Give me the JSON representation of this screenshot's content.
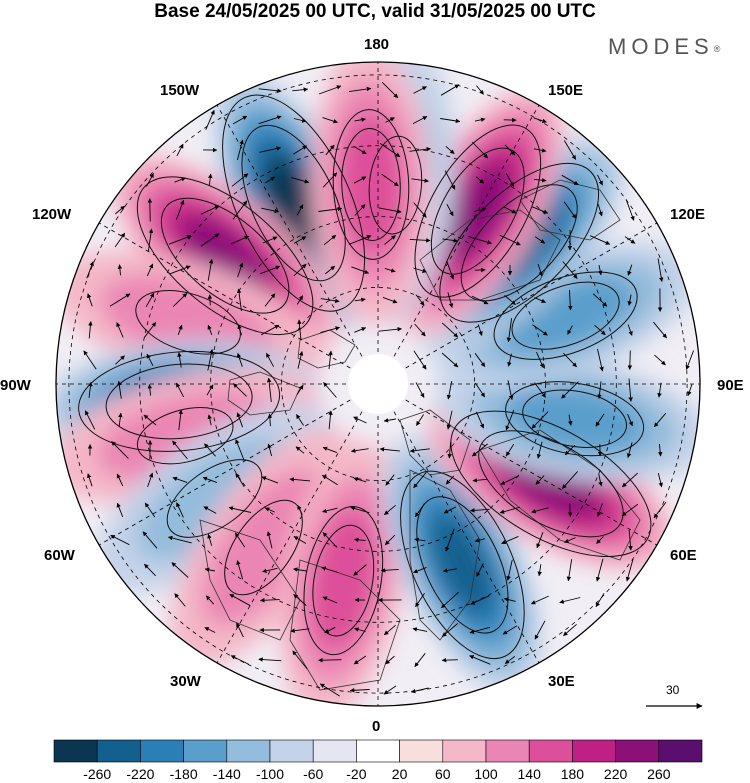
{
  "header": {
    "title": "Base 24/05/2025 00 UTC, valid 31/05/2025 00 UTC",
    "brand": "MODES",
    "brand_mark": "®"
  },
  "map": {
    "projection": "north-polar-stereographic",
    "longitude_labels": [
      "180",
      "150E",
      "120E",
      "90E",
      "60E",
      "30E",
      "0",
      "30W",
      "60W",
      "90W",
      "120W",
      "150W"
    ],
    "field_type": "filled-contours",
    "vectors": "wind arrows",
    "anomaly_centers": [
      {
        "sign": "negative",
        "lon": -155,
        "strength": 0.95
      },
      {
        "sign": "positive",
        "lon": -130,
        "strength": 0.85
      },
      {
        "sign": "positive",
        "lon": -108,
        "strength": 0.35
      },
      {
        "sign": "negative",
        "lon": -85,
        "strength": 0.8
      },
      {
        "sign": "positive",
        "lon": -75,
        "strength": 0.3
      },
      {
        "sign": "negative",
        "lon": -55,
        "strength": 0.35
      },
      {
        "sign": "positive",
        "lon": -35,
        "strength": 0.35
      },
      {
        "sign": "positive",
        "lon": -10,
        "strength": 0.55
      },
      {
        "sign": "negative",
        "lon": 25,
        "strength": 0.8
      },
      {
        "sign": "positive",
        "lon": 60,
        "strength": 0.9
      },
      {
        "sign": "negative",
        "lon": 80,
        "strength": 0.5
      },
      {
        "sign": "negative",
        "lon": 110,
        "strength": 0.55
      },
      {
        "sign": "negative",
        "lon": 135,
        "strength": 0.8
      },
      {
        "sign": "positive",
        "lon": 150,
        "strength": 0.75
      },
      {
        "sign": "negative",
        "lon": 175,
        "strength": 0.3
      },
      {
        "sign": "positive",
        "lon": -178,
        "strength": 0.55
      }
    ]
  },
  "reference_vector": {
    "value": "30"
  },
  "colorbar": {
    "ticks": [
      "-260",
      "-220",
      "-180",
      "-140",
      "-100",
      "-60",
      "-20",
      "20",
      "60",
      "100",
      "140",
      "180",
      "220",
      "260"
    ],
    "colors": [
      "#0b3550",
      "#12608f",
      "#2a7fb7",
      "#5a9fcc",
      "#94bcdc",
      "#c4d3e9",
      "#e6e6f2",
      "#ffffff",
      "#f9dede",
      "#f4b8c8",
      "#eb86b4",
      "#dd4f9a",
      "#c02085",
      "#8b1078",
      "#5a0e6e"
    ]
  }
}
